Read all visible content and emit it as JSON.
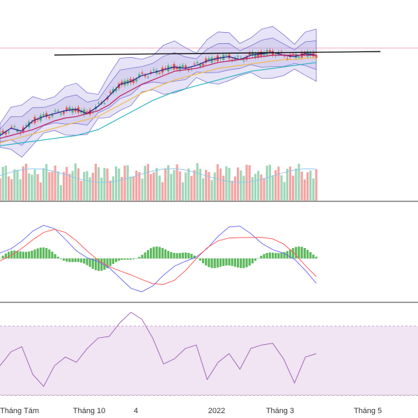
{
  "chart_data": {
    "type": "line",
    "x_labels": [
      "Tháng Tám",
      "Tháng 10",
      "4",
      "2022",
      "Tháng 3",
      "Tháng 5"
    ],
    "colors": {
      "bollinger_fill": "#b7b3e6",
      "bollinger_line": "#7b74d1",
      "candle_up": "#5aa98a",
      "candle_down": "#e0574f",
      "ma_fast": "#1c1c8c",
      "ma_mid": "#c2185b",
      "ma_slow": "#f2b84b",
      "ma_long": "#2bb3c0",
      "volume_up": "#9fd6b8",
      "volume_down": "#f4a3a3",
      "volume_ma": "#8ec7ea",
      "macd_line": "#6f6ff0",
      "signal_line": "#ff5a5a",
      "hist_pos": "#5cb85c",
      "rsi_bg": "#f1e4f3",
      "rsi_line": "#a266b8",
      "trendline": "#111111",
      "price_hline": "#f3a7c4"
    },
    "series": [
      {
        "values": [
          25,
          30,
          28,
          35,
          38,
          40,
          42,
          43,
          40,
          45,
          52,
          60,
          62,
          66,
          68,
          70,
          72,
          71,
          73,
          76,
          78,
          79,
          77,
          80,
          81,
          82,
          80,
          79,
          81,
          80
        ]
      },
      {
        "values": [
          23,
          25,
          27,
          29,
          32,
          35,
          37,
          38,
          40,
          42,
          46,
          52,
          56,
          60,
          63,
          66,
          69,
          70,
          71,
          73,
          75,
          76,
          77,
          78,
          79,
          80,
          80,
          80,
          80,
          80
        ]
      },
      {
        "values": [
          20,
          22,
          24,
          26,
          28,
          30,
          32,
          34,
          36,
          38,
          42,
          46,
          50,
          54,
          57,
          60,
          63,
          65,
          67,
          69,
          71,
          72,
          73,
          74,
          75,
          76,
          77,
          77,
          78,
          78
        ]
      },
      {
        "values": [
          18,
          19,
          20,
          21,
          22,
          23,
          24,
          25,
          27,
          29,
          33,
          37,
          41,
          45,
          49,
          52,
          55,
          57,
          59,
          61,
          63,
          65,
          67,
          69,
          70,
          71,
          72,
          73,
          74,
          75
        ]
      }
    ],
    "rsi": [
      47,
      55,
      58,
      42,
      35,
      47,
      52,
      49,
      57,
      63,
      64,
      72,
      78,
      74,
      63,
      48,
      51,
      57,
      59,
      39,
      49,
      54,
      45,
      57,
      59,
      60,
      51,
      37,
      52,
      54
    ]
  }
}
